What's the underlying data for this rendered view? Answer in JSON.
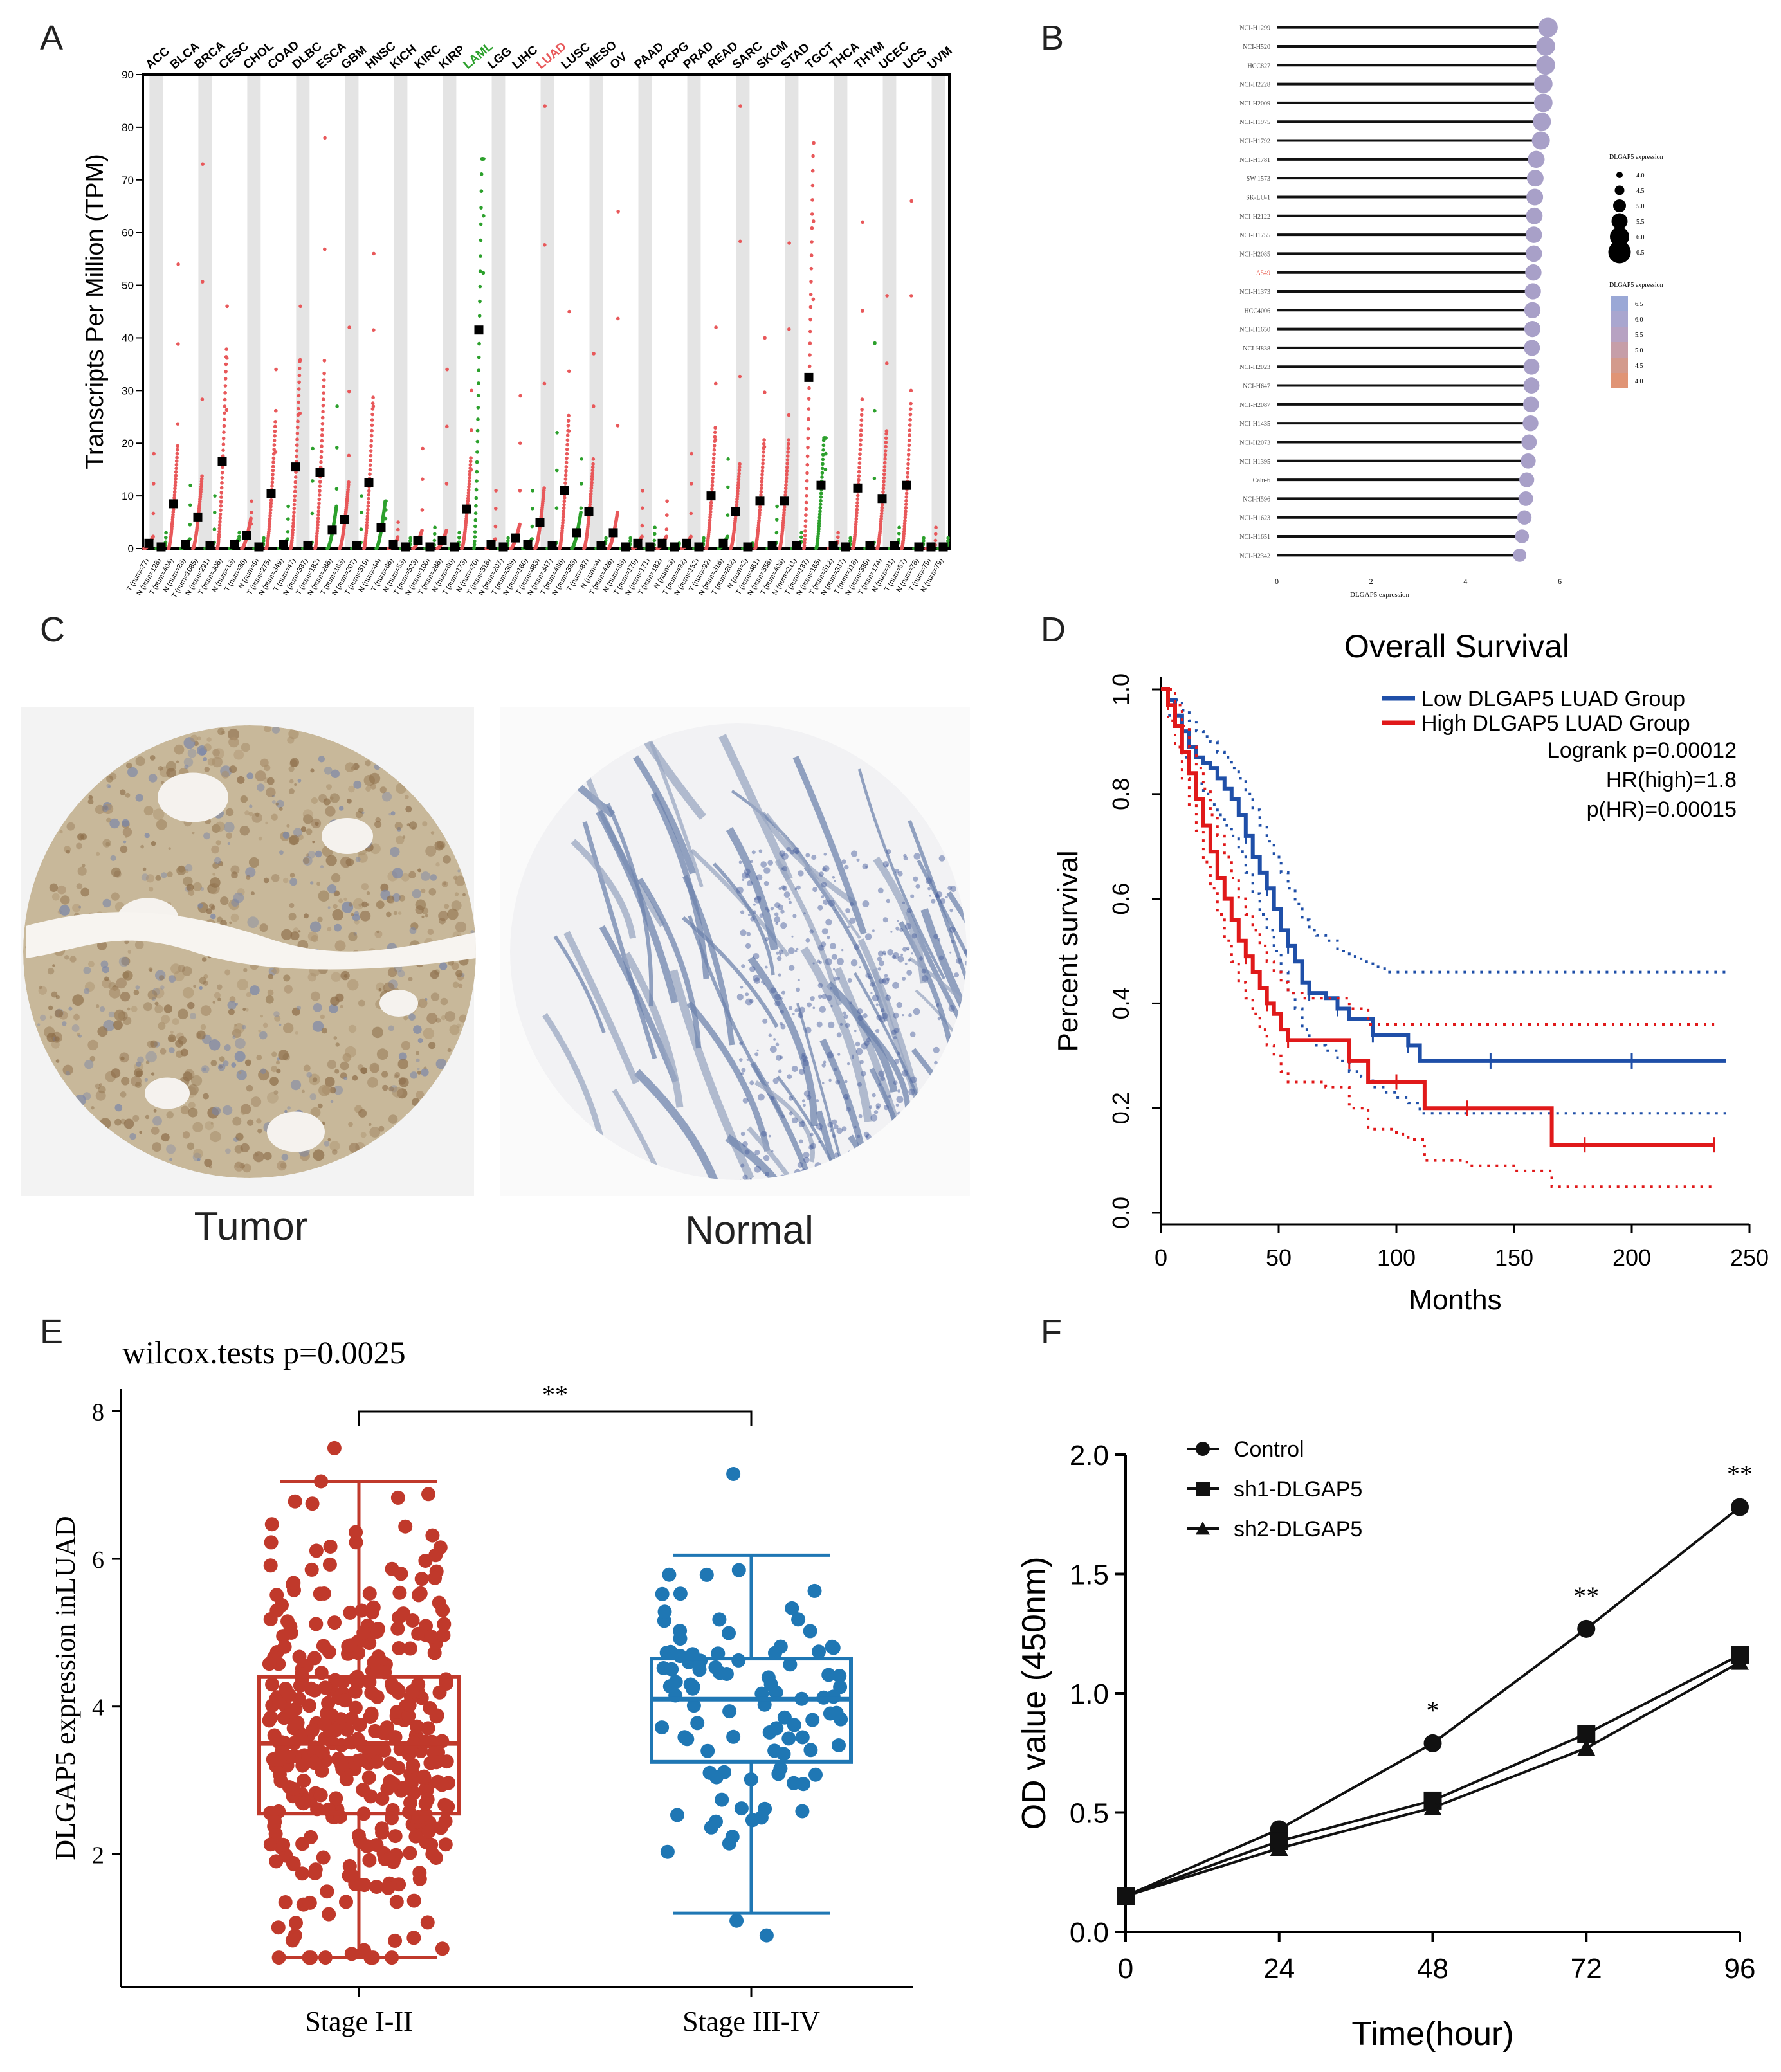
{
  "panels": {
    "A": "A",
    "B": "B",
    "C": "C",
    "D": "D",
    "E": "E",
    "F": "F"
  },
  "colors": {
    "tumor": "#e8585a",
    "normal": "#2ca02c",
    "highlight_green": "#2ca02c",
    "highlight_red": "#e8585a",
    "low_group": "#1f4fa8",
    "high_group": "#e0191a",
    "stage12": "#c0392b",
    "stage34": "#1f77b4",
    "lollipop_dot": "#a8a0c8",
    "gray_band": "#e4e4e4"
  },
  "chart_data": [
    {
      "type": "scatter",
      "panel": "A",
      "ylabel": "Transcripts Per Million (TPM)",
      "ylim": [
        0,
        90
      ],
      "yticks": [
        0,
        10,
        20,
        30,
        40,
        50,
        60,
        70,
        80,
        90
      ],
      "cancers": [
        "ACC",
        "BLCA",
        "BRCA",
        "CESC",
        "CHOL",
        "COAD",
        "DLBC",
        "ESCA",
        "GBM",
        "HNSC",
        "KICH",
        "KIRC",
        "KIRP",
        "LAML",
        "LGG",
        "LIHC",
        "LUAD",
        "LUSC",
        "MESO",
        "OV",
        "PAAD",
        "PCPG",
        "PRAD",
        "READ",
        "SARC",
        "SKCM",
        "STAD",
        "TGCT",
        "THCA",
        "THYM",
        "UCEC",
        "UCS",
        "UVM"
      ],
      "highlighted": {
        "LAML": "green",
        "LUAD": "red"
      },
      "groups": [
        {
          "label": "T (num=77)",
          "median": 1.0,
          "max": 18,
          "kind": "T"
        },
        {
          "label": "N (num=128)",
          "median": 0.3,
          "max": 3,
          "kind": "N"
        },
        {
          "label": "T (num=404)",
          "median": 8.5,
          "max": 54,
          "kind": "T"
        },
        {
          "label": "N (num=28)",
          "median": 0.8,
          "max": 12,
          "kind": "N"
        },
        {
          "label": "T (num=1085)",
          "median": 6.0,
          "max": 73,
          "kind": "T"
        },
        {
          "label": "N (num=291)",
          "median": 0.5,
          "max": 10,
          "kind": "N"
        },
        {
          "label": "T (num=306)",
          "median": 16.5,
          "max": 46,
          "kind": "T"
        },
        {
          "label": "N (num=13)",
          "median": 0.8,
          "max": 3,
          "kind": "N"
        },
        {
          "label": "T (num=36)",
          "median": 2.5,
          "max": 9,
          "kind": "T"
        },
        {
          "label": "N (num=9)",
          "median": 0.3,
          "max": 2,
          "kind": "N"
        },
        {
          "label": "T (num=275)",
          "median": 10.5,
          "max": 34,
          "kind": "T"
        },
        {
          "label": "N (num=349)",
          "median": 0.8,
          "max": 8,
          "kind": "N"
        },
        {
          "label": "T (num=47)",
          "median": 15.5,
          "max": 46,
          "kind": "T"
        },
        {
          "label": "N (num=337)",
          "median": 0.5,
          "max": 19,
          "kind": "N"
        },
        {
          "label": "T (num=182)",
          "median": 14.5,
          "max": 78,
          "kind": "T"
        },
        {
          "label": "N (num=286)",
          "median": 3.5,
          "max": 27,
          "kind": "N"
        },
        {
          "label": "T (num=163)",
          "median": 5.5,
          "max": 42,
          "kind": "T"
        },
        {
          "label": "N (num=207)",
          "median": 0.5,
          "max": 10,
          "kind": "N"
        },
        {
          "label": "T (num=519)",
          "median": 12.5,
          "max": 56,
          "kind": "T"
        },
        {
          "label": "N (num=44)",
          "median": 4.0,
          "max": 9,
          "kind": "N"
        },
        {
          "label": "T (num=66)",
          "median": 0.8,
          "max": 5,
          "kind": "T"
        },
        {
          "label": "N (num=53)",
          "median": 0.3,
          "max": 2,
          "kind": "N"
        },
        {
          "label": "T (num=523)",
          "median": 1.5,
          "max": 19,
          "kind": "T"
        },
        {
          "label": "N (num=100)",
          "median": 0.3,
          "max": 4,
          "kind": "N"
        },
        {
          "label": "T (num=286)",
          "median": 1.5,
          "max": 34,
          "kind": "T"
        },
        {
          "label": "N (num=60)",
          "median": 0.3,
          "max": 3,
          "kind": "N"
        },
        {
          "label": "T (num=173)",
          "median": 7.5,
          "max": 30,
          "kind": "T"
        },
        {
          "label": "N (num=70)",
          "median": 41.5,
          "max": 74,
          "kind": "N"
        },
        {
          "label": "T (num=518)",
          "median": 0.8,
          "max": 11,
          "kind": "T"
        },
        {
          "label": "N (num=207)",
          "median": 0.3,
          "max": 2,
          "kind": "N"
        },
        {
          "label": "T (num=369)",
          "median": 2.0,
          "max": 29,
          "kind": "T"
        },
        {
          "label": "N (num=160)",
          "median": 0.8,
          "max": 11,
          "kind": "N"
        },
        {
          "label": "T (num=483)",
          "median": 5.0,
          "max": 84,
          "kind": "T"
        },
        {
          "label": "N (num=347)",
          "median": 0.5,
          "max": 22,
          "kind": "N"
        },
        {
          "label": "T (num=486)",
          "median": 11.0,
          "max": 45,
          "kind": "T"
        },
        {
          "label": "N (num=338)",
          "median": 3.0,
          "max": 17,
          "kind": "N"
        },
        {
          "label": "T (num=87)",
          "median": 7.0,
          "max": 37,
          "kind": "T"
        },
        {
          "label": "N (num=4)",
          "median": 0.5,
          "max": 2,
          "kind": "N"
        },
        {
          "label": "T (num=426)",
          "median": 3.0,
          "max": 64,
          "kind": "T"
        },
        {
          "label": "N (num=88)",
          "median": 0.3,
          "max": 2,
          "kind": "N"
        },
        {
          "label": "T (num=179)",
          "median": 1.0,
          "max": 11,
          "kind": "T"
        },
        {
          "label": "N (num=171)",
          "median": 0.3,
          "max": 4,
          "kind": "N"
        },
        {
          "label": "T (num=182)",
          "median": 1.0,
          "max": 9,
          "kind": "T"
        },
        {
          "label": "N (num=3)",
          "median": 0.3,
          "max": 1,
          "kind": "N"
        },
        {
          "label": "T (num=492)",
          "median": 1.0,
          "max": 18,
          "kind": "T"
        },
        {
          "label": "N (num=152)",
          "median": 0.3,
          "max": 2,
          "kind": "N"
        },
        {
          "label": "T (num=92)",
          "median": 10.0,
          "max": 42,
          "kind": "T"
        },
        {
          "label": "N (num=318)",
          "median": 1.0,
          "max": 17,
          "kind": "N"
        },
        {
          "label": "T (num=262)",
          "median": 7.0,
          "max": 84,
          "kind": "T"
        },
        {
          "label": "N (num=2)",
          "median": 0.3,
          "max": 1,
          "kind": "N"
        },
        {
          "label": "T (num=461)",
          "median": 9.0,
          "max": 40,
          "kind": "T"
        },
        {
          "label": "N (num=558)",
          "median": 0.5,
          "max": 8,
          "kind": "N"
        },
        {
          "label": "T (num=408)",
          "median": 9.0,
          "max": 58,
          "kind": "T"
        },
        {
          "label": "N (num=211)",
          "median": 0.5,
          "max": 3,
          "kind": "N"
        },
        {
          "label": "T (num=137)",
          "median": 32.5,
          "max": 77,
          "kind": "T"
        },
        {
          "label": "N (num=165)",
          "median": 12.0,
          "max": 21,
          "kind": "N"
        },
        {
          "label": "T (num=512)",
          "median": 0.5,
          "max": 3,
          "kind": "T"
        },
        {
          "label": "N (num=337)",
          "median": 0.3,
          "max": 2,
          "kind": "N"
        },
        {
          "label": "T (num=118)",
          "median": 11.5,
          "max": 62,
          "kind": "T"
        },
        {
          "label": "N (num=339)",
          "median": 0.5,
          "max": 39,
          "kind": "N"
        },
        {
          "label": "T (num=174)",
          "median": 9.5,
          "max": 48,
          "kind": "T"
        },
        {
          "label": "N (num=91)",
          "median": 0.5,
          "max": 4,
          "kind": "N"
        },
        {
          "label": "T (num=57)",
          "median": 12.0,
          "max": 66,
          "kind": "T"
        },
        {
          "label": "N (num=78)",
          "median": 0.3,
          "max": 2,
          "kind": "N"
        },
        {
          "label": "T (num=79)",
          "median": 0.3,
          "max": 4,
          "kind": "T"
        },
        {
          "label": "N (num=79)",
          "median": 0.3,
          "max": 2,
          "kind": "N"
        }
      ]
    },
    {
      "type": "lollipop",
      "panel": "B",
      "xlabel": "DLGAP5 expression",
      "xlim": [
        0,
        6
      ],
      "xticks": [
        0,
        2,
        4,
        6
      ],
      "highlight_label": "A549",
      "size_legend_title": "DLGAP5 expression",
      "size_legend_values": [
        "4.0",
        "4.5",
        "5.0",
        "5.5",
        "6.0",
        "6.5"
      ],
      "color_legend_title": "DLGAP5 expression",
      "color_legend_values": [
        "6.5",
        "6.0",
        "5.5",
        "5.0",
        "4.5",
        "4.0"
      ],
      "cell_lines": [
        "NCI-H1299",
        "NCI-H520",
        "HCC827",
        "NCI-H2228",
        "NCI-H2009",
        "NCI-H1975",
        "NCI-H1792",
        "NCI-H1781",
        "SW 1573",
        "SK-LU-1",
        "NCI-H2122",
        "NCI-H1755",
        "NCI-H2085",
        "A549",
        "NCI-H1373",
        "HCC4006",
        "NCI-H1650",
        "NCI-H838",
        "NCI-H2023",
        "NCI-H647",
        "NCI-H2087",
        "NCI-H1435",
        "NCI-H2073",
        "NCI-H1395",
        "Calu-6",
        "NCI-H596",
        "NCI-H1623",
        "NCI-H1651",
        "NCI-H2342"
      ],
      "values": [
        5.75,
        5.7,
        5.7,
        5.65,
        5.65,
        5.62,
        5.6,
        5.5,
        5.48,
        5.47,
        5.46,
        5.45,
        5.45,
        5.44,
        5.43,
        5.42,
        5.42,
        5.41,
        5.4,
        5.4,
        5.39,
        5.38,
        5.35,
        5.33,
        5.3,
        5.28,
        5.25,
        5.2,
        5.15
      ]
    },
    {
      "type": "line",
      "panel": "D",
      "title": "Overall Survival",
      "xlabel": "Months",
      "ylabel": "Percent survival",
      "xlim": [
        0,
        250
      ],
      "ylim": [
        0,
        1
      ],
      "xticks": [
        "0",
        "50",
        "100",
        "150",
        "200",
        "250"
      ],
      "yticks": [
        "0.0",
        "0.2",
        "0.4",
        "0.6",
        "0.8",
        "1.0"
      ],
      "legend": [
        "Low DLGAP5 LUAD Group",
        "High DLGAP5 LUAD Group"
      ],
      "stats": [
        "Logrank p=0.00012",
        "HR(high)=1.8",
        "p(HR)=0.00015"
      ],
      "series": [
        {
          "name": "Low DLGAP5 LUAD Group",
          "x": [
            0,
            3,
            6,
            9,
            12,
            15,
            18,
            21,
            24,
            27,
            30,
            33,
            36,
            39,
            42,
            45,
            48,
            51,
            54,
            57,
            60,
            63,
            66,
            70,
            75,
            80,
            85,
            90,
            95,
            100,
            105,
            110,
            120,
            140,
            160,
            180,
            200,
            220,
            240
          ],
          "y": [
            1.0,
            0.98,
            0.95,
            0.92,
            0.89,
            0.87,
            0.86,
            0.85,
            0.83,
            0.81,
            0.79,
            0.76,
            0.72,
            0.68,
            0.65,
            0.62,
            0.58,
            0.54,
            0.51,
            0.48,
            0.44,
            0.42,
            0.42,
            0.41,
            0.39,
            0.37,
            0.37,
            0.34,
            0.34,
            0.34,
            0.32,
            0.29,
            0.29,
            0.29,
            0.29,
            0.29,
            0.29,
            0.29,
            0.29
          ],
          "ci_upper": [
            1.0,
            1.0,
            0.98,
            0.96,
            0.94,
            0.92,
            0.91,
            0.9,
            0.88,
            0.87,
            0.85,
            0.83,
            0.8,
            0.77,
            0.74,
            0.71,
            0.68,
            0.65,
            0.62,
            0.59,
            0.56,
            0.54,
            0.53,
            0.52,
            0.5,
            0.49,
            0.48,
            0.47,
            0.46,
            0.46,
            0.46,
            0.46,
            0.46,
            0.46,
            0.46,
            0.46,
            0.46,
            0.46,
            0.46
          ],
          "ci_lower": [
            1.0,
            0.95,
            0.91,
            0.87,
            0.84,
            0.82,
            0.8,
            0.78,
            0.76,
            0.74,
            0.72,
            0.69,
            0.65,
            0.61,
            0.57,
            0.54,
            0.5,
            0.46,
            0.42,
            0.39,
            0.35,
            0.33,
            0.32,
            0.31,
            0.29,
            0.27,
            0.26,
            0.24,
            0.23,
            0.22,
            0.21,
            0.19,
            0.19,
            0.19,
            0.19,
            0.19,
            0.19,
            0.19,
            0.19
          ]
        },
        {
          "name": "High DLGAP5 LUAD Group",
          "x": [
            0,
            3,
            6,
            9,
            12,
            15,
            18,
            21,
            24,
            27,
            30,
            33,
            36,
            39,
            42,
            45,
            48,
            51,
            54,
            60,
            70,
            80,
            88,
            95,
            100,
            105,
            112,
            130,
            150,
            166,
            180,
            200,
            220,
            235
          ],
          "y": [
            1.0,
            0.97,
            0.93,
            0.88,
            0.84,
            0.79,
            0.74,
            0.69,
            0.64,
            0.6,
            0.56,
            0.52,
            0.49,
            0.46,
            0.43,
            0.4,
            0.38,
            0.35,
            0.33,
            0.33,
            0.33,
            0.29,
            0.25,
            0.25,
            0.25,
            0.25,
            0.2,
            0.2,
            0.2,
            0.13,
            0.13,
            0.13,
            0.13,
            0.13
          ],
          "ci_upper": [
            1.0,
            1.0,
            0.97,
            0.93,
            0.89,
            0.85,
            0.81,
            0.76,
            0.72,
            0.68,
            0.64,
            0.6,
            0.57,
            0.54,
            0.51,
            0.48,
            0.46,
            0.44,
            0.42,
            0.41,
            0.41,
            0.39,
            0.36,
            0.36,
            0.36,
            0.36,
            0.36,
            0.36,
            0.36,
            0.36,
            0.36,
            0.36,
            0.36,
            0.36
          ],
          "ci_lower": [
            1.0,
            0.94,
            0.89,
            0.83,
            0.78,
            0.73,
            0.67,
            0.62,
            0.57,
            0.52,
            0.48,
            0.44,
            0.41,
            0.38,
            0.35,
            0.32,
            0.3,
            0.27,
            0.25,
            0.25,
            0.24,
            0.2,
            0.16,
            0.16,
            0.15,
            0.14,
            0.1,
            0.09,
            0.08,
            0.05,
            0.05,
            0.05,
            0.05,
            0.05
          ]
        }
      ]
    },
    {
      "type": "box",
      "panel": "E",
      "title": "wilcox.tests p=0.0025",
      "ylabel": "DLGAP5 expression inLUAD",
      "ylim": [
        0.2,
        8.3
      ],
      "yticks": [
        "2",
        "4",
        "6",
        "8"
      ],
      "categories": [
        "Stage I-II",
        "Stage III-IV"
      ],
      "significance": "**",
      "boxes": [
        {
          "name": "Stage I-II",
          "whisker_low": 0.6,
          "q1": 2.55,
          "median": 3.5,
          "q3": 4.4,
          "whisker_high": 7.05,
          "n_points": 390,
          "extra_points": [
            7.5,
            0.65,
            0.7
          ]
        },
        {
          "name": "Stage III-IV",
          "whisker_low": 1.2,
          "q1": 3.25,
          "median": 4.1,
          "q3": 4.65,
          "whisker_high": 6.05,
          "n_points": 95,
          "extra_points": [
            7.15,
            0.9,
            1.1
          ]
        }
      ]
    },
    {
      "type": "line",
      "panel": "F",
      "xlabel": "Time(hour)",
      "ylabel": "OD value (450nm)",
      "xlim": [
        0,
        96
      ],
      "ylim": [
        0,
        2.0
      ],
      "xticks": [
        "0",
        "24",
        "48",
        "72",
        "96"
      ],
      "yticks": [
        "0.0",
        "0.5",
        "1.0",
        "1.5",
        "2.0"
      ],
      "x": [
        0,
        24,
        48,
        72,
        96
      ],
      "series": [
        {
          "name": "Control",
          "marker": "circle",
          "values": [
            0.15,
            0.43,
            0.79,
            1.27,
            1.78
          ]
        },
        {
          "name": "sh1-DLGAP5",
          "marker": "square",
          "values": [
            0.15,
            0.38,
            0.55,
            0.83,
            1.16
          ]
        },
        {
          "name": "sh2-DLGAP5",
          "marker": "triangle",
          "values": [
            0.15,
            0.35,
            0.52,
            0.77,
            1.13
          ]
        }
      ],
      "annotations": [
        {
          "x": 48,
          "label": "*"
        },
        {
          "x": 72,
          "label": "**"
        },
        {
          "x": 96,
          "label": "**"
        }
      ]
    }
  ],
  "tissue": {
    "tumor_label": "Tumor",
    "normal_label": "Normal"
  }
}
